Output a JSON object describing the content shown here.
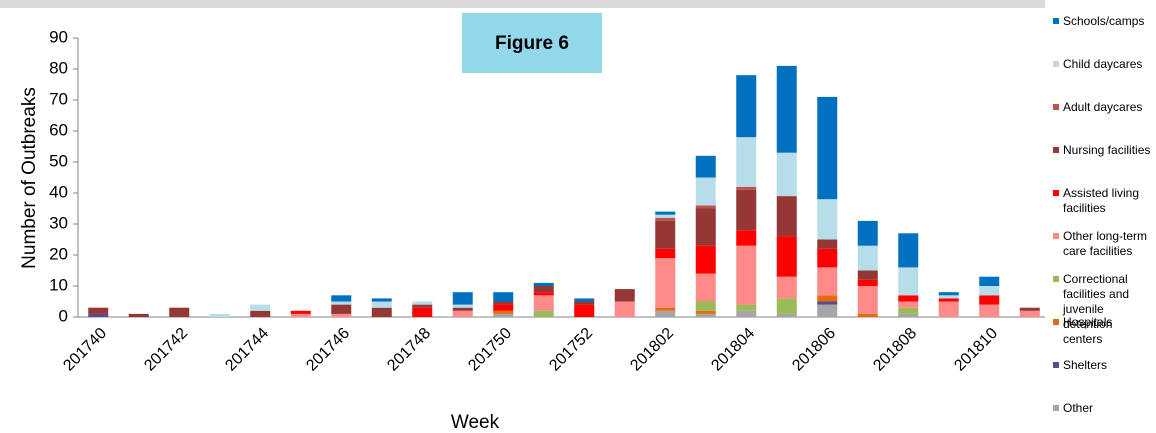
{
  "chart_data": {
    "type": "stacked-bar",
    "title": "Figure 6",
    "x_label": "Week",
    "y_label": "Number of Outbreaks",
    "categories": [
      "201740",
      null,
      "201742",
      null,
      "201744",
      null,
      "201746",
      null,
      "201748",
      null,
      "201750",
      null,
      "201752",
      null,
      "201802",
      null,
      "201804",
      null,
      "201806",
      null,
      "201808",
      null,
      "201810",
      null
    ],
    "ylim": [
      0,
      90
    ],
    "yticks": [
      0,
      10,
      20,
      30,
      40,
      50,
      60,
      70,
      80,
      90
    ],
    "series": [
      {
        "name": "Other",
        "color": "#a6a6a6",
        "values": [
          0,
          0,
          0,
          0,
          0,
          0,
          0,
          0,
          0,
          0,
          1,
          0,
          0,
          0,
          2,
          1,
          2,
          1,
          4,
          0,
          1,
          0,
          0,
          0
        ]
      },
      {
        "name": "Shelters",
        "color": "#5b4a8c",
        "values": [
          1,
          0,
          0,
          0,
          0,
          0,
          0,
          0,
          0,
          0,
          0,
          0,
          0,
          0,
          0,
          0,
          0,
          0,
          1,
          0,
          0,
          0,
          0,
          0
        ]
      },
      {
        "name": "Hospitals",
        "color": "#e46c0a",
        "values": [
          0,
          0,
          0,
          0,
          0,
          0,
          0,
          0,
          0,
          0,
          1,
          0,
          0,
          0,
          1,
          1,
          0,
          0,
          2,
          1,
          0,
          0,
          0,
          0
        ]
      },
      {
        "name": "Correctional facilities and juvenile detention centers",
        "color": "#9bbb59",
        "values": [
          0,
          0,
          0,
          0,
          0,
          0,
          0,
          0,
          0,
          0,
          0,
          2,
          0,
          0,
          0,
          3,
          2,
          5,
          0,
          0,
          2,
          0,
          0,
          0
        ]
      },
      {
        "name": "Other long-term care facilities",
        "color": "#ff8a8a",
        "values": [
          0,
          0,
          0,
          0,
          0,
          1,
          1,
          0,
          0,
          2,
          0,
          5,
          0,
          5,
          16,
          9,
          19,
          7,
          9,
          9,
          2,
          5,
          4,
          2
        ]
      },
      {
        "name": "Assisted living facilities",
        "color": "#ff0000",
        "values": [
          0,
          0,
          0,
          0,
          0,
          1,
          0,
          0,
          3,
          0,
          2,
          1,
          4,
          0,
          3,
          9,
          5,
          13,
          6,
          2,
          2,
          1,
          3,
          0
        ]
      },
      {
        "name": "Nursing facilities",
        "color": "#953735",
        "values": [
          2,
          1,
          3,
          0,
          2,
          0,
          3,
          3,
          1,
          1,
          1,
          2,
          1,
          4,
          9,
          12,
          13,
          13,
          3,
          3,
          0,
          0,
          0,
          1
        ]
      },
      {
        "name": "Adult daycares",
        "color": "#c0504d",
        "values": [
          0,
          0,
          0,
          0,
          0,
          0,
          0,
          0,
          0,
          0,
          0,
          0,
          0,
          0,
          1,
          1,
          1,
          0,
          0,
          0,
          0,
          0,
          0,
          0
        ]
      },
      {
        "name": "Child daycares",
        "color": "#b7dee8",
        "values": [
          0,
          0,
          0,
          1,
          2,
          0,
          1,
          2,
          1,
          1,
          0,
          0,
          0,
          0,
          1,
          9,
          16,
          14,
          13,
          8,
          9,
          1,
          3,
          0
        ]
      },
      {
        "name": "Schools/camps",
        "color": "#0070c0",
        "values": [
          0,
          0,
          0,
          0,
          0,
          0,
          2,
          1,
          0,
          4,
          3,
          1,
          1,
          0,
          1,
          7,
          20,
          28,
          33,
          8,
          11,
          1,
          3,
          0
        ]
      }
    ]
  }
}
